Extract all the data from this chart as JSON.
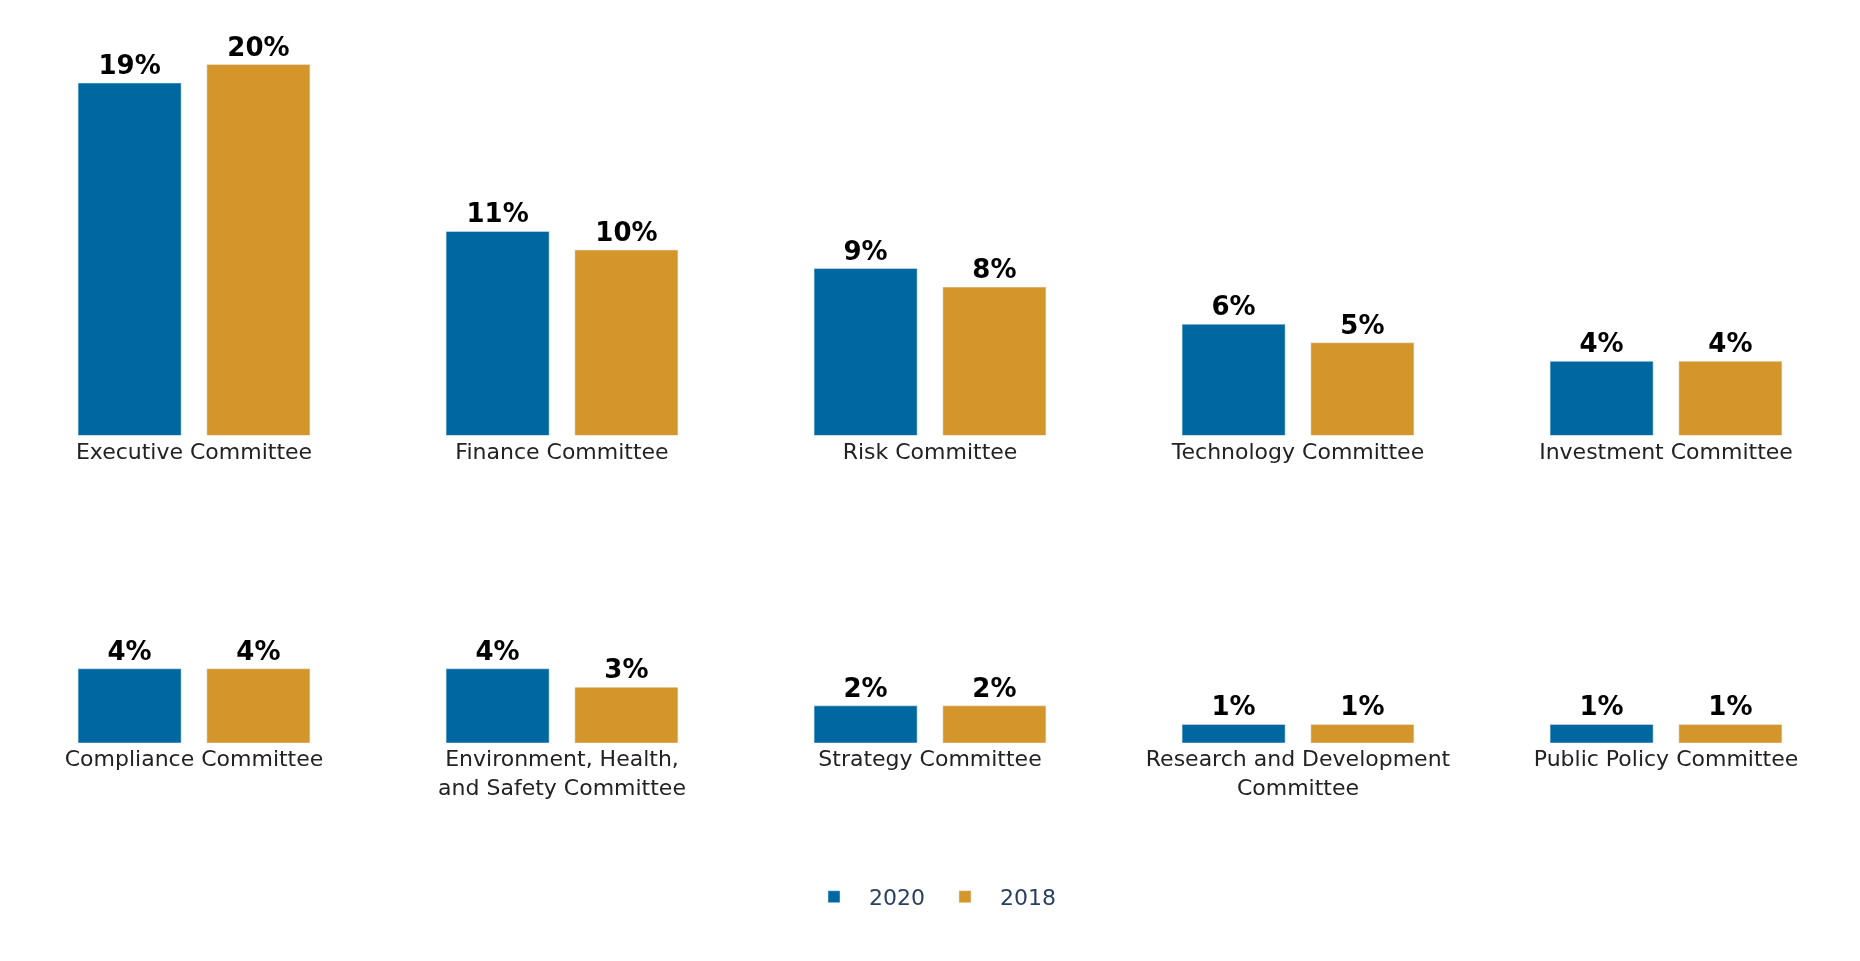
{
  "chart_data": [
    {
      "type": "bar",
      "categories": [
        "Executive Committee",
        "Finance Committee",
        "Risk Committee",
        "Technology Committee",
        "Investment Committee"
      ],
      "series": [
        {
          "name": "2020",
          "color": "#0067a0",
          "values": [
            19,
            11,
            9,
            6,
            4
          ],
          "value_labels": [
            "19%",
            "11%",
            "9%",
            "6%",
            "4%"
          ]
        },
        {
          "name": "2018",
          "color": "#d4952a",
          "values": [
            20,
            10,
            8,
            5,
            4
          ],
          "value_labels": [
            "20%",
            "10%",
            "8%",
            "5%",
            "4%"
          ]
        }
      ],
      "legend": "bottom"
    },
    {
      "type": "bar",
      "categories": [
        "Compliance Committee",
        "Environment, Health,\nand Safety Committee",
        "Strategy Committee",
        "Research and Development\nCommittee",
        "Public Policy Committee"
      ],
      "series": [
        {
          "name": "2020",
          "color": "#0067a0",
          "values": [
            4,
            4,
            2,
            1,
            1
          ],
          "value_labels": [
            "4%",
            "4%",
            "2%",
            "1%",
            "1%"
          ]
        },
        {
          "name": "2018",
          "color": "#d4952a",
          "values": [
            4,
            3,
            2,
            1,
            1
          ],
          "value_labels": [
            "4%",
            "3%",
            "2%",
            "1%",
            "1%"
          ]
        }
      ],
      "legend": "bottom"
    }
  ]
}
